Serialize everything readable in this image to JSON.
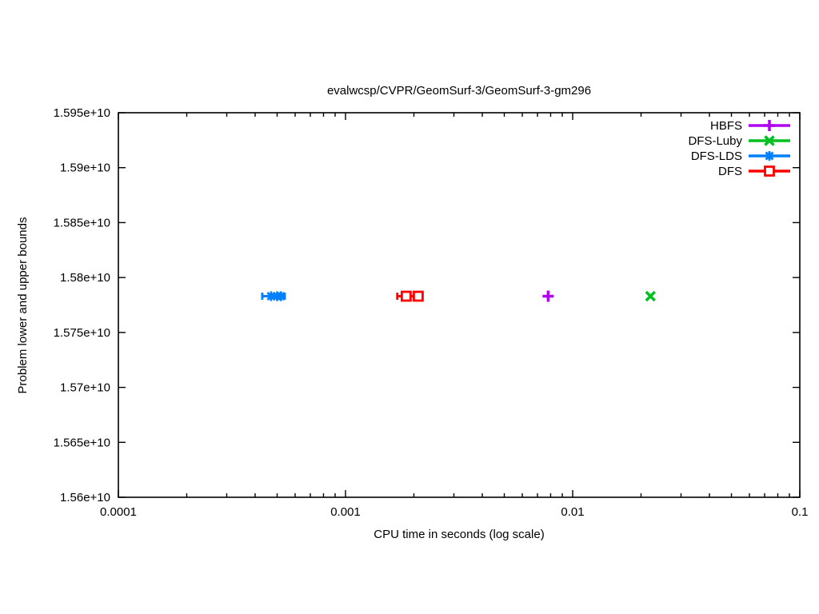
{
  "chart_data": {
    "type": "scatter",
    "title": "evalwcsp/CVPR/GeomSurf-3/GeomSurf-3-gm296",
    "xlabel": "CPU time in seconds (log scale)",
    "ylabel": "Problem lower and upper bounds",
    "x_scale": "log",
    "grid": false,
    "legend_position": "top-right",
    "xlim": [
      0.0001,
      0.1
    ],
    "ylim": [
      15600000000,
      15950000000
    ],
    "x_ticks": [
      0.0001,
      0.001,
      0.01,
      0.1
    ],
    "x_tick_labels": [
      "0.0001",
      "0.001",
      "0.01",
      "0.1"
    ],
    "y_ticks": [
      15600000000,
      15650000000,
      15700000000,
      15750000000,
      15800000000,
      15850000000,
      15900000000,
      15950000000
    ],
    "y_tick_labels": [
      "1.56e+10",
      "1.565e+10",
      "1.57e+10",
      "1.575e+10",
      "1.58e+10",
      "1.585e+10",
      "1.59e+10",
      "1.595e+10"
    ],
    "series": [
      {
        "name": "HBFS",
        "color": "#b000f0",
        "marker": "plus",
        "points": [
          [
            0.0078,
            15783000000
          ]
        ]
      },
      {
        "name": "DFS-Luby",
        "color": "#00c020",
        "marker": "cross",
        "points": [
          [
            0.022,
            15783000000
          ]
        ]
      },
      {
        "name": "DFS-LDS",
        "color": "#0080ff",
        "marker": "asterisk",
        "points": [
          [
            0.00047,
            15783000000
          ],
          [
            0.0005,
            15783000000
          ],
          [
            0.00052,
            15783000000
          ]
        ],
        "line_x": [
          0.00043,
          0.00054
        ],
        "line_y": 15783000000
      },
      {
        "name": "DFS",
        "color": "#ff0000",
        "marker": "square-open",
        "points": [
          [
            0.00185,
            15783000000
          ],
          [
            0.00209,
            15783000000
          ]
        ],
        "line_x": [
          0.00169,
          0.00218
        ],
        "line_y": 15783000000
      }
    ]
  }
}
